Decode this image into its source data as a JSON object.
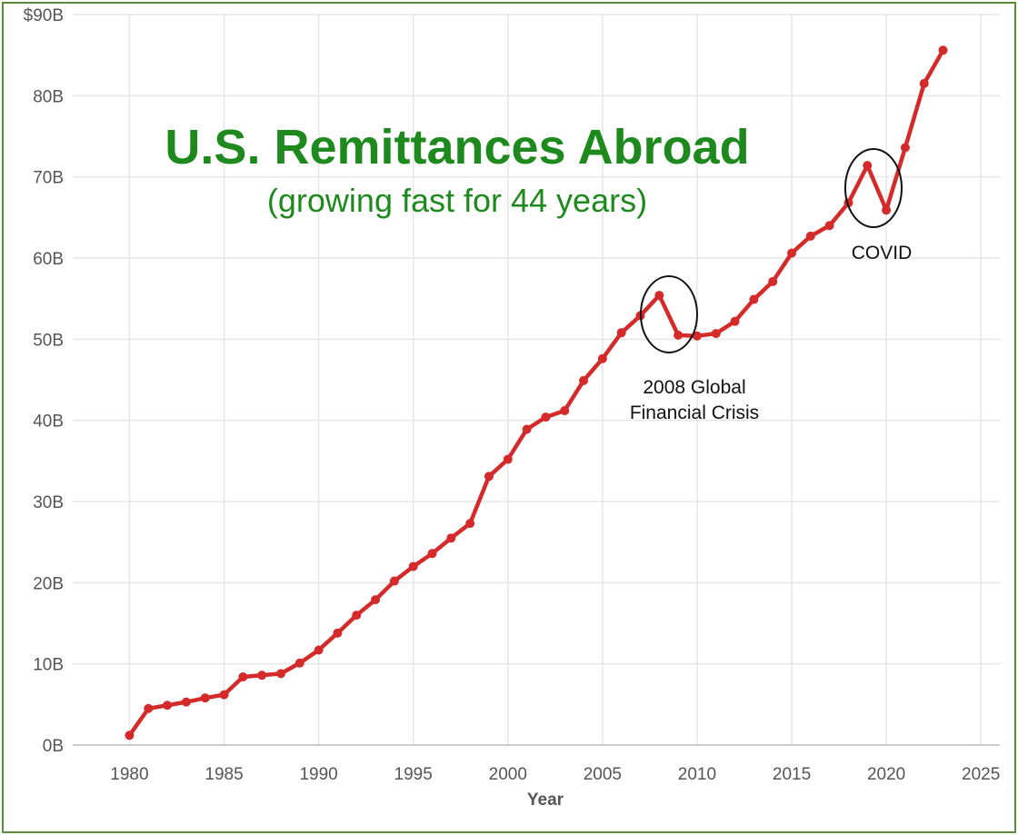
{
  "chart_data": {
    "type": "line",
    "title": "U.S. Remittances Abroad",
    "subtitle": "(growing fast for 44 years)",
    "xlabel": "Year",
    "ylabel": "",
    "xlim": [
      1977,
      2026
    ],
    "ylim": [
      0,
      90
    ],
    "x_ticks": [
      1980,
      1985,
      1990,
      1995,
      2000,
      2005,
      2010,
      2015,
      2020,
      2025
    ],
    "y_ticks": [
      0,
      10,
      20,
      30,
      40,
      50,
      60,
      70,
      80,
      90
    ],
    "y_tick_labels": [
      "0B",
      "10B",
      "20B",
      "30B",
      "40B",
      "50B",
      "60B",
      "70B",
      "80B",
      "$90B"
    ],
    "grid": true,
    "colors": {
      "line": "#d42a2a",
      "title": "#1e8a1e",
      "grid": "#e6e6e6",
      "frame": "#5a8a3a"
    },
    "series": [
      {
        "x": [
          1980,
          1981,
          1982,
          1983,
          1984,
          1985,
          1986,
          1987,
          1988,
          1989,
          1990,
          1991,
          1992,
          1993,
          1994,
          1995,
          1996,
          1997,
          1998,
          1999,
          2000,
          2001,
          2002,
          2003,
          2004,
          2005,
          2006,
          2007,
          2008,
          2009,
          2010,
          2011,
          2012,
          2013,
          2014,
          2015,
          2016,
          2017,
          2018,
          2019,
          2020,
          2021,
          2022,
          2023
        ],
        "values": [
          1.2,
          4.5,
          4.9,
          5.3,
          5.8,
          6.2,
          8.4,
          8.6,
          8.8,
          10.1,
          11.7,
          13.8,
          16.0,
          17.9,
          20.2,
          22.0,
          23.6,
          25.5,
          27.3,
          33.1,
          35.2,
          38.9,
          40.4,
          41.2,
          44.9,
          47.6,
          50.8,
          52.9,
          55.4,
          50.5,
          50.4,
          50.7,
          52.2,
          54.9,
          57.1,
          60.6,
          62.7,
          64.0,
          66.8,
          71.4,
          65.9,
          73.6,
          81.5,
          85.6
        ]
      }
    ],
    "annotations": [
      {
        "lines": [
          "2008 Global",
          "Financial Crisis"
        ]
      },
      {
        "lines": [
          "COVID"
        ]
      }
    ]
  }
}
